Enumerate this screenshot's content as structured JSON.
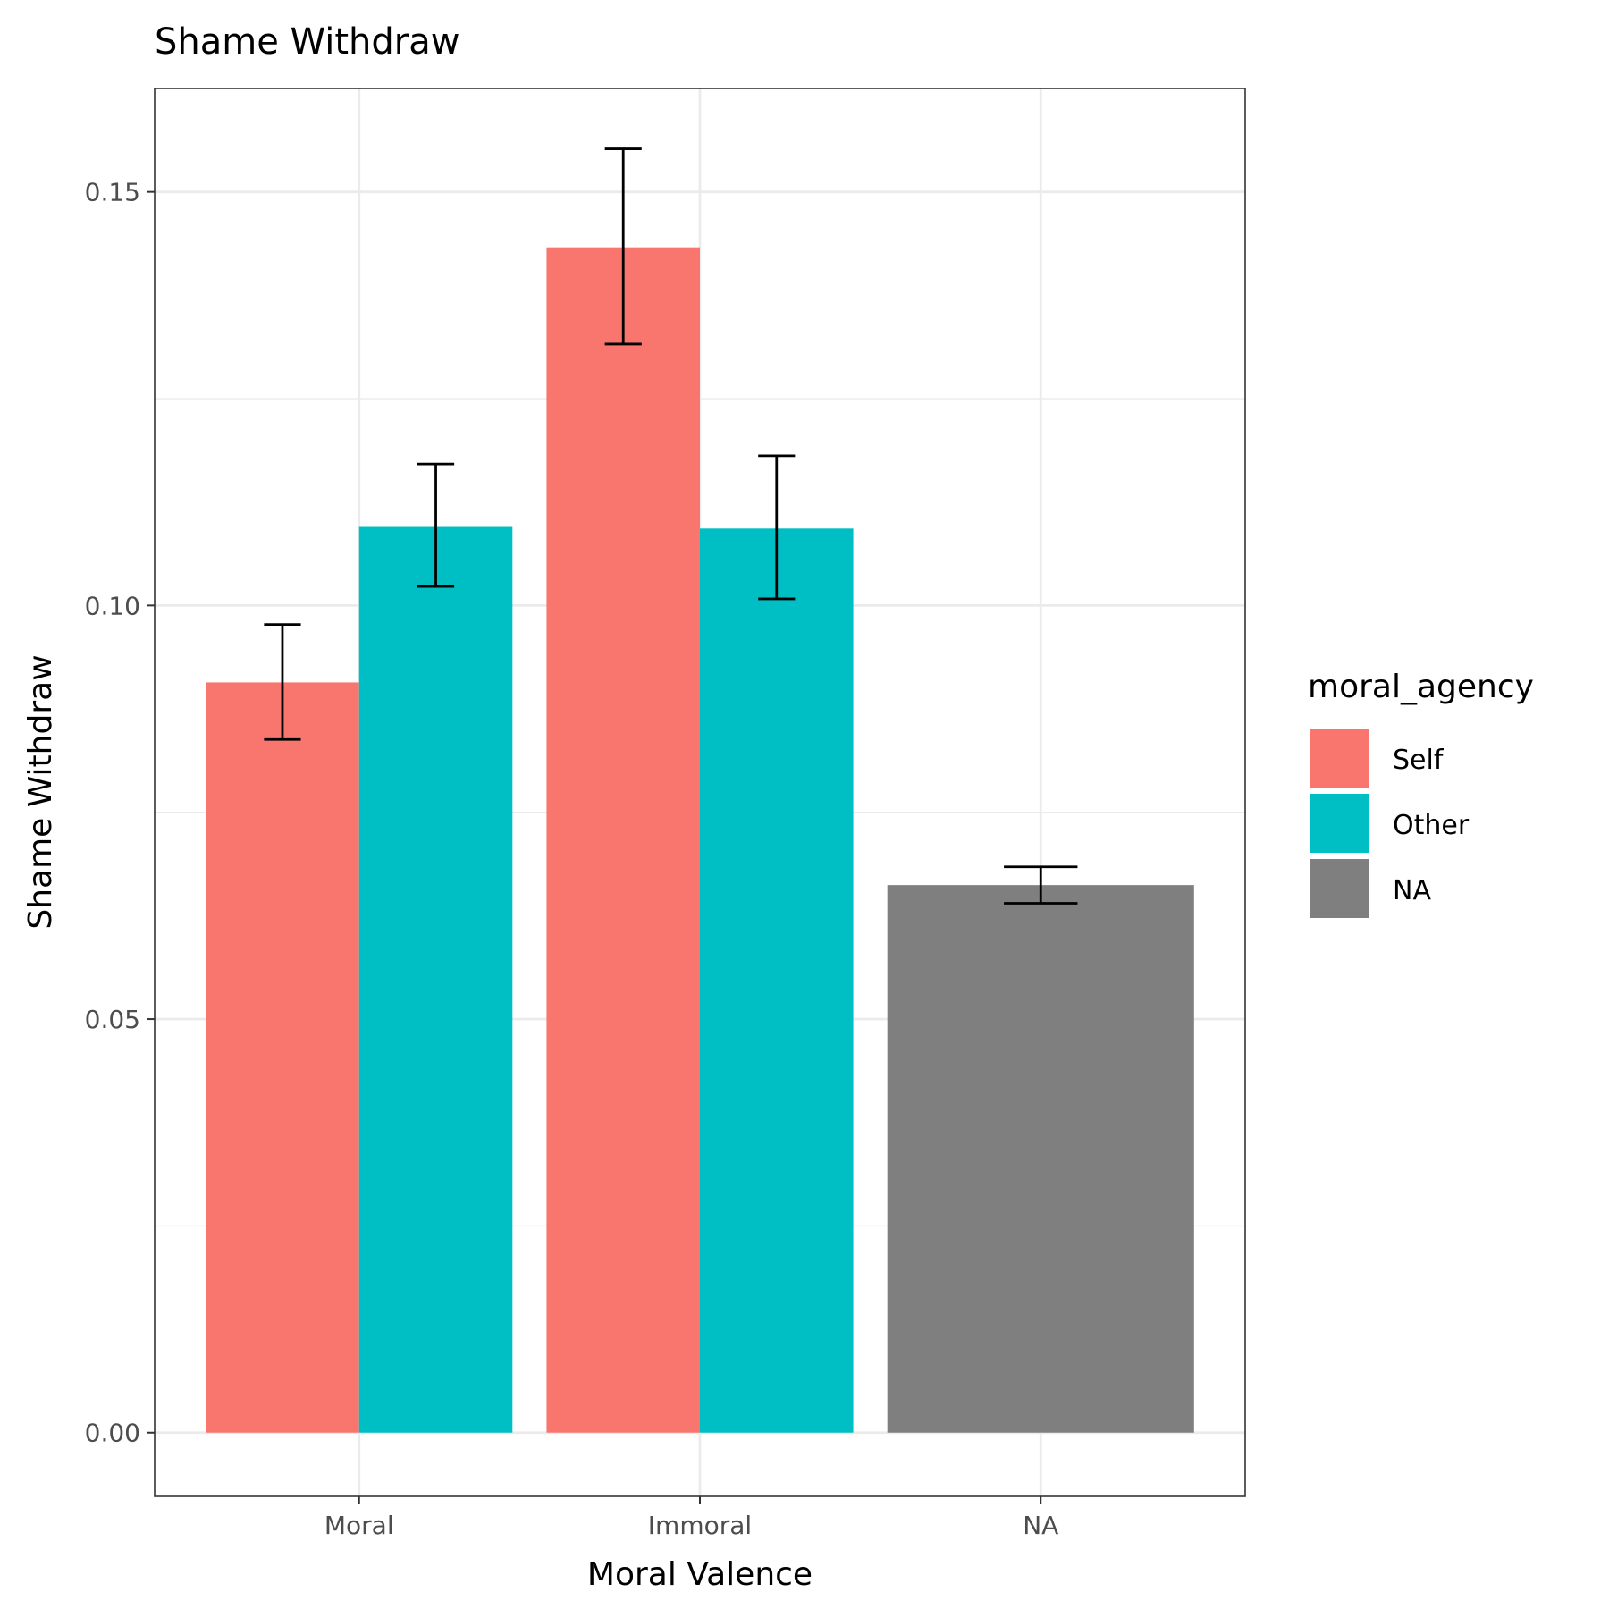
{
  "chart_data": {
    "type": "bar",
    "title": "Shame Withdraw",
    "xlabel": "Moral Valence",
    "ylabel": "Shame Withdraw",
    "categories": [
      "Moral",
      "Immoral",
      "NA"
    ],
    "ylim": [
      -0.0077,
      0.1625
    ],
    "yticks": [
      0.0,
      0.05,
      0.1,
      0.15
    ],
    "ytick_labels": [
      "0.00",
      "0.05",
      "0.10",
      "0.15"
    ],
    "grid": true,
    "legend": {
      "title": "moral_agency",
      "position": "right",
      "entries": [
        "Self",
        "Other",
        "NA"
      ]
    },
    "series": [
      {
        "name": "Self",
        "color": "#F8766D",
        "values": [
          0.0907,
          0.1433,
          null
        ],
        "error_low": [
          0.0838,
          0.1316,
          null
        ],
        "error_high": [
          0.0977,
          0.1552,
          null
        ]
      },
      {
        "name": "Other",
        "color": "#00BFC4",
        "values": [
          0.1096,
          0.1093,
          null
        ],
        "error_low": [
          0.1023,
          0.1008,
          null
        ],
        "error_high": [
          0.1171,
          0.1181,
          null
        ]
      },
      {
        "name": "NA",
        "color": "#7F7F7F",
        "values": [
          null,
          null,
          0.0662
        ],
        "error_low": [
          null,
          null,
          0.064
        ],
        "error_high": [
          null,
          null,
          0.0684
        ]
      }
    ]
  }
}
